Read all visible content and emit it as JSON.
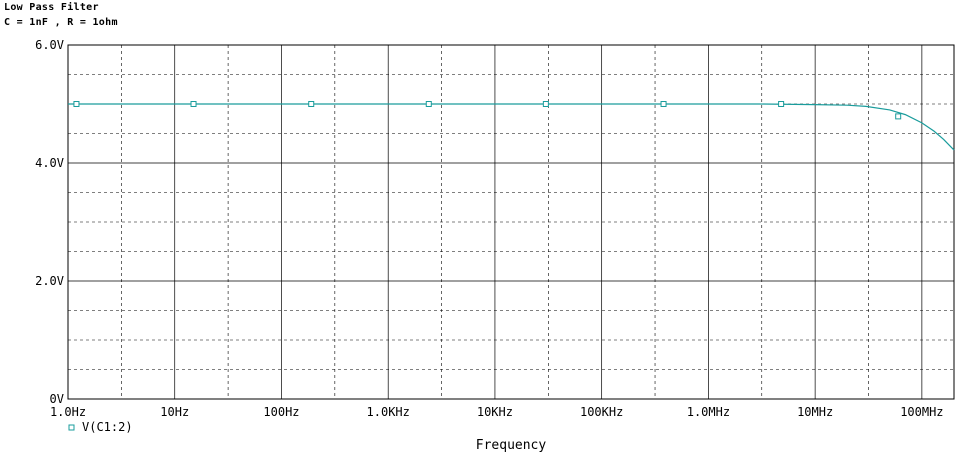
{
  "header": {
    "title": "Low Pass Filter",
    "subtitle": "C = 1nF , R = 1ohm"
  },
  "colors": {
    "trace": "#1a9c9c",
    "grid": "#000000",
    "background": "#ffffff"
  },
  "chart_data": {
    "type": "line",
    "title": "Low Pass Filter",
    "subtitle": "C = 1nF , R = 1ohm",
    "xlabel": "Frequency",
    "ylabel": "",
    "xscale": "log",
    "xlim": [
      1,
      200000000
    ],
    "ylim": [
      0,
      6
    ],
    "x_tick_values": [
      1,
      10,
      100,
      1000,
      10000,
      100000,
      1000000,
      10000000,
      100000000
    ],
    "x_tick_labels": [
      "1.0Hz",
      "10Hz",
      "100Hz",
      "1.0KHz",
      "10KHz",
      "100KHz",
      "1.0MHz",
      "10MHz",
      "100MHz"
    ],
    "y_tick_values": [
      0,
      2,
      4,
      6
    ],
    "y_tick_labels": [
      "0V",
      "2.0V",
      "4.0V",
      "6.0V"
    ],
    "grid": true,
    "legend": "bottom-left",
    "series": [
      {
        "name": "V(C1:2)",
        "marker": "square",
        "x": [
          1,
          3,
          10,
          30,
          100,
          300,
          1000,
          3000,
          10000,
          30000,
          100000,
          300000,
          1000000,
          3000000,
          10000000,
          20000000,
          30000000,
          50000000,
          70000000,
          100000000,
          130000000,
          160000000,
          200000000
        ],
        "values": [
          5.0,
          5.0,
          5.0,
          5.0,
          5.0,
          5.0,
          5.0,
          5.0,
          5.0,
          5.0,
          5.0,
          5.0,
          5.0,
          5.0,
          4.99,
          4.98,
          4.96,
          4.9,
          4.82,
          4.68,
          4.54,
          4.4,
          4.22
        ],
        "marker_x": [
          1.2,
          15,
          190,
          2400,
          30000,
          380000,
          4800000,
          60000000
        ],
        "marker_values": [
          5.0,
          5.0,
          5.0,
          5.0,
          5.0,
          5.0,
          5.0,
          4.79
        ]
      }
    ]
  }
}
